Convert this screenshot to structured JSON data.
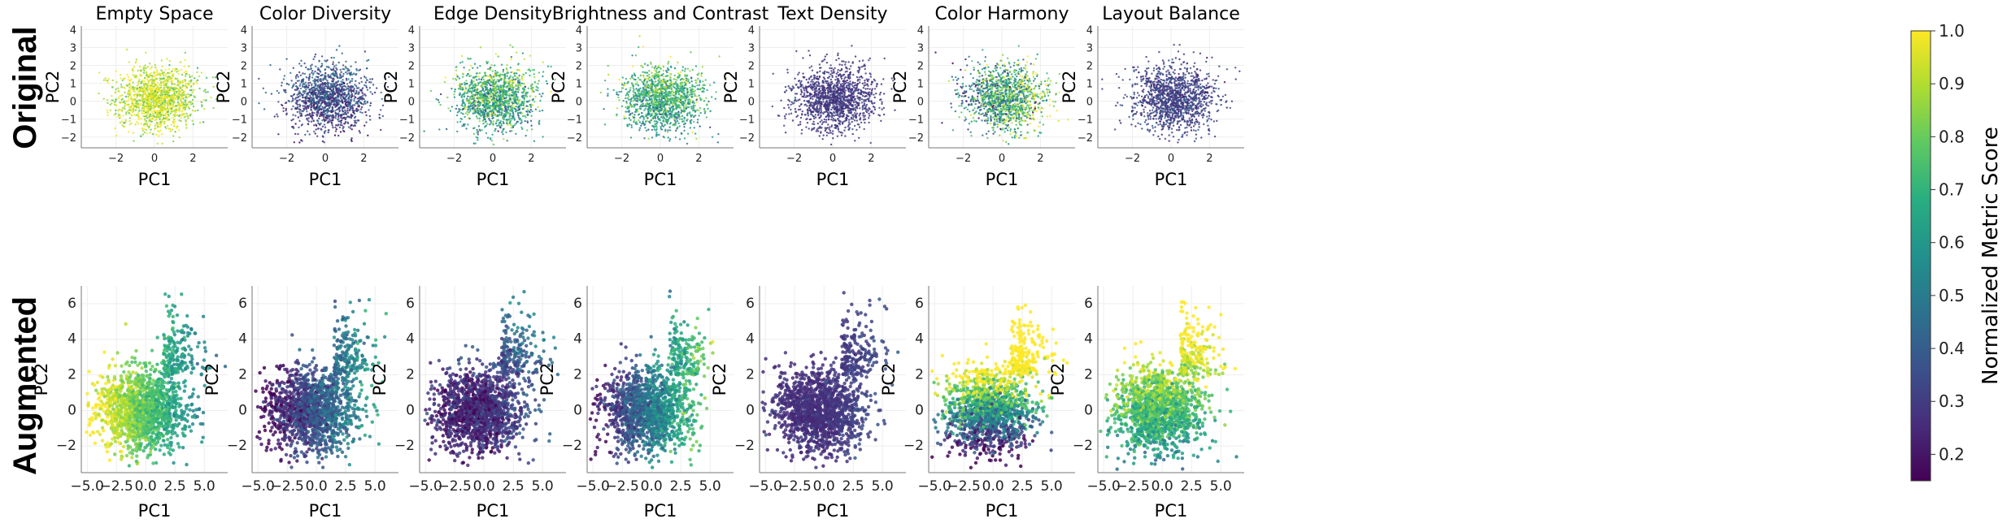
{
  "row_labels": [
    "Original",
    "Augmented"
  ],
  "colorbar": {
    "label": "Normalized Metric Score",
    "range": [
      0.15,
      1.0
    ],
    "ticks": [
      "1.0",
      "0.9",
      "0.8",
      "0.7",
      "0.6",
      "0.5",
      "0.4",
      "0.3",
      "0.2"
    ],
    "colormap": "viridis"
  },
  "chart_data": [
    {
      "type": "scatter",
      "title": "Empty Space",
      "xlabel": "PC1",
      "ylabel": "PC2",
      "row": "Original",
      "xlim": [
        -3.8,
        3.8
      ],
      "ylim": [
        -2.6,
        4.2
      ],
      "xticks": [
        "−2",
        "0",
        "2"
      ],
      "yticks": [
        "−2",
        "−1",
        "0",
        "1",
        "2",
        "3",
        "4"
      ],
      "color_trend": "mostly 0.8–1.0 (yellow-green), lower at right edge",
      "grid": true
    },
    {
      "type": "scatter",
      "title": "Color Diversity",
      "xlabel": "PC1",
      "ylabel": "PC2",
      "row": "Original",
      "xlim": [
        -3.8,
        3.8
      ],
      "ylim": [
        -2.6,
        4.2
      ],
      "xticks": [
        "−2",
        "0",
        "2"
      ],
      "yticks": [
        "−2",
        "−1",
        "0",
        "1",
        "2",
        "3",
        "4"
      ],
      "color_trend": "mostly 0.2–0.4 (purple-blue)",
      "grid": true
    },
    {
      "type": "scatter",
      "title": "Edge Density",
      "xlabel": "PC1",
      "ylabel": "PC2",
      "row": "Original",
      "xlim": [
        -3.8,
        3.8
      ],
      "ylim": [
        -2.6,
        4.2
      ],
      "xticks": [
        "−2",
        "0",
        "2"
      ],
      "yticks": [
        "−2",
        "−1",
        "0",
        "1",
        "2",
        "3",
        "4"
      ],
      "color_trend": "mixed 0.4–0.9 (teal-green-yellow)",
      "grid": true
    },
    {
      "type": "scatter",
      "title": "Brightness and Contrast",
      "xlabel": "PC1",
      "ylabel": "PC2",
      "row": "Original",
      "xlim": [
        -3.8,
        3.8
      ],
      "ylim": [
        -2.6,
        4.2
      ],
      "xticks": [
        "−2",
        "0",
        "2"
      ],
      "yticks": [
        "−2",
        "−1",
        "0",
        "1",
        "2",
        "3",
        "4"
      ],
      "color_trend": "mostly 0.5–0.8 (green), darker at bottom",
      "grid": true
    },
    {
      "type": "scatter",
      "title": "Text Density",
      "xlabel": "PC1",
      "ylabel": "PC2",
      "row": "Original",
      "xlim": [
        -3.8,
        3.8
      ],
      "ylim": [
        -2.6,
        4.2
      ],
      "xticks": [
        "−2",
        "0",
        "2"
      ],
      "yticks": [
        "−2",
        "−1",
        "0",
        "1",
        "2",
        "3",
        "4"
      ],
      "color_trend": "mostly 0.15–0.25 (dark purple)",
      "grid": true
    },
    {
      "type": "scatter",
      "title": "Color Harmony",
      "xlabel": "PC1",
      "ylabel": "PC2",
      "row": "Original",
      "xlim": [
        -3.8,
        3.8
      ],
      "ylim": [
        -2.6,
        4.2
      ],
      "xticks": [
        "−2",
        "0",
        "2"
      ],
      "yticks": [
        "−2",
        "−1",
        "0",
        "1",
        "2",
        "3",
        "4"
      ],
      "color_trend": "mixed 0.3–1.0, higher on right",
      "grid": true
    },
    {
      "type": "scatter",
      "title": "Layout Balance",
      "xlabel": "PC1",
      "ylabel": "PC2",
      "row": "Original",
      "xlim": [
        -3.8,
        3.8
      ],
      "ylim": [
        -2.6,
        4.2
      ],
      "xticks": [
        "−2",
        "0",
        "2"
      ],
      "yticks": [
        "−2",
        "−1",
        "0",
        "1",
        "2",
        "3",
        "4"
      ],
      "color_trend": "mostly 0.2–0.3 (purple)",
      "grid": true
    },
    {
      "type": "scatter",
      "title": "",
      "xlabel": "PC1",
      "ylabel": "PC2",
      "row": "Augmented",
      "xlim": [
        -5.5,
        7.0
      ],
      "ylim": [
        -3.5,
        7.0
      ],
      "xticks": [
        "−5.0",
        "−2.5",
        "0.0",
        "2.5",
        "5.0"
      ],
      "yticks": [
        "−2",
        "0",
        "2",
        "4",
        "6"
      ],
      "color_trend": "1.0 (yellow) on left decreasing to 0.5 (teal) on right",
      "grid": true
    },
    {
      "type": "scatter",
      "title": "",
      "xlabel": "PC1",
      "ylabel": "PC2",
      "row": "Augmented",
      "xlim": [
        -5.5,
        7.0
      ],
      "ylim": [
        -3.5,
        7.0
      ],
      "xticks": [
        "−5.0",
        "−2.5",
        "0.0",
        "2.5",
        "5.0"
      ],
      "yticks": [
        "−2",
        "0",
        "2",
        "4",
        "6"
      ],
      "color_trend": "0.15 (purple) on left rising to 0.5 (teal) on right",
      "grid": true
    },
    {
      "type": "scatter",
      "title": "",
      "xlabel": "PC1",
      "ylabel": "PC2",
      "row": "Augmented",
      "xlim": [
        -5.5,
        7.0
      ],
      "ylim": [
        -3.5,
        7.0
      ],
      "xticks": [
        "−5.0",
        "−2.5",
        "0.0",
        "2.5",
        "5.0"
      ],
      "yticks": [
        "−2",
        "0",
        "2",
        "4",
        "6"
      ],
      "color_trend": "mostly 0.15–0.3, some teal/green top-right",
      "grid": true
    },
    {
      "type": "scatter",
      "title": "",
      "xlabel": "PC1",
      "ylabel": "PC2",
      "row": "Augmented",
      "xlim": [
        -5.5,
        7.0
      ],
      "ylim": [
        -3.5,
        7.0
      ],
      "xticks": [
        "−5.0",
        "−2.5",
        "0.0",
        "2.5",
        "5.0"
      ],
      "yticks": [
        "−2",
        "0",
        "2",
        "4",
        "6"
      ],
      "color_trend": "0.2 (purple) on left rising to 1.0 (yellow) on right",
      "grid": true
    },
    {
      "type": "scatter",
      "title": "",
      "xlabel": "PC1",
      "ylabel": "PC2",
      "row": "Augmented",
      "xlim": [
        -5.5,
        7.0
      ],
      "ylim": [
        -3.5,
        7.0
      ],
      "xticks": [
        "−5.0",
        "−2.5",
        "0.0",
        "2.5",
        "5.0"
      ],
      "yticks": [
        "−2",
        "0",
        "2",
        "4",
        "6"
      ],
      "color_trend": "mostly 0.15–0.25 (dark purple)",
      "grid": true
    },
    {
      "type": "scatter",
      "title": "",
      "xlabel": "PC1",
      "ylabel": "PC2",
      "row": "Augmented",
      "xlim": [
        -5.5,
        7.0
      ],
      "ylim": [
        -3.5,
        7.0
      ],
      "xticks": [
        "−5.0",
        "−2.5",
        "0.0",
        "2.5",
        "5.0"
      ],
      "yticks": [
        "−2",
        "0",
        "2",
        "4",
        "6"
      ],
      "color_trend": "yellow (0.9–1.0) upper band, purple (0.2) lower band",
      "grid": true
    },
    {
      "type": "scatter",
      "title": "",
      "xlabel": "PC1",
      "ylabel": "PC2",
      "row": "Augmented",
      "xlim": [
        -5.5,
        7.0
      ],
      "ylim": [
        -3.5,
        7.0
      ],
      "xticks": [
        "−5.0",
        "−2.5",
        "0.0",
        "2.5",
        "5.0"
      ],
      "yticks": [
        "−2",
        "0",
        "2",
        "4",
        "6"
      ],
      "color_trend": "yellow-green (0.8–1.0) upper, teal (0.5) lower",
      "grid": true
    }
  ]
}
